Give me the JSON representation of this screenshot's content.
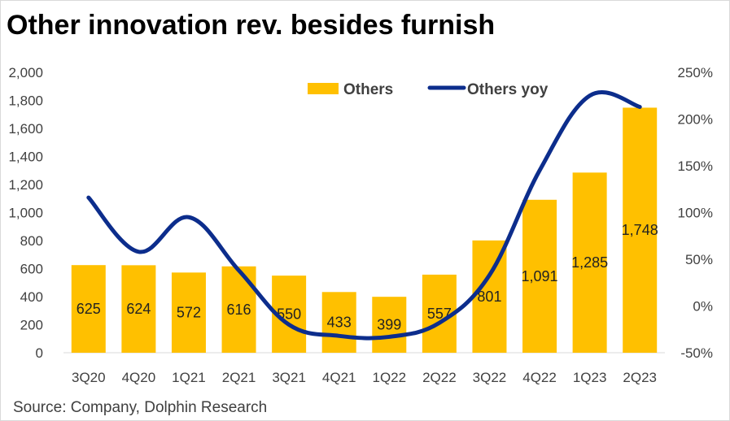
{
  "title": "Other innovation rev. besides furnish",
  "source": "Source: Company, Dolphin Research",
  "colors": {
    "bar": "#FFC000",
    "line": "#0C2D8C",
    "axis_text": "#404040"
  },
  "chart_data": {
    "type": "bar+line",
    "categories": [
      "3Q20",
      "4Q20",
      "1Q21",
      "2Q21",
      "3Q21",
      "4Q21",
      "1Q22",
      "2Q22",
      "3Q22",
      "4Q22",
      "1Q23",
      "2Q23"
    ],
    "series": [
      {
        "name": "Others",
        "type": "bar",
        "axis": "left",
        "values": [
          625,
          624,
          572,
          616,
          550,
          433,
          399,
          557,
          801,
          1091,
          1285,
          1748
        ],
        "labels": [
          "625",
          "624",
          "572",
          "616",
          "550",
          "433",
          "399",
          "557",
          "801",
          "1,091",
          "1,285",
          "1,748"
        ]
      },
      {
        "name": "Others yoy",
        "type": "line",
        "axis": "right",
        "values": [
          1.16,
          0.58,
          0.95,
          0.38,
          -0.2,
          -0.32,
          -0.33,
          -0.18,
          0.33,
          1.45,
          2.25,
          2.13
        ]
      }
    ],
    "y_left": {
      "range": [
        0,
        2000
      ],
      "ticks": [
        "0",
        "200",
        "400",
        "600",
        "800",
        "1,000",
        "1,200",
        "1,400",
        "1,600",
        "1,800",
        "2,000"
      ]
    },
    "y_right": {
      "range": [
        -0.5,
        2.5
      ],
      "ticks": [
        "-50%",
        "0%",
        "50%",
        "100%",
        "150%",
        "200%",
        "250%"
      ]
    },
    "legend": {
      "position": "top-center",
      "entries": [
        "Others",
        "Others yoy"
      ]
    },
    "grid": false
  }
}
